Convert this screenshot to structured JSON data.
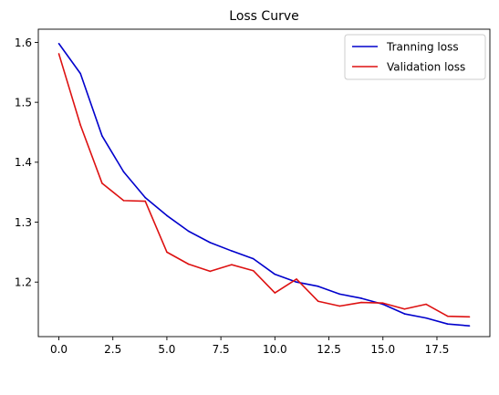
{
  "chart_data": {
    "type": "line",
    "title": "Loss Curve",
    "xlabel": "",
    "ylabel": "",
    "x": [
      0,
      1,
      2,
      3,
      4,
      5,
      6,
      7,
      8,
      9,
      10,
      11,
      12,
      13,
      14,
      15,
      16,
      17,
      18,
      19
    ],
    "xlim": [
      -0.95,
      19.95
    ],
    "ylim": [
      1.109,
      1.622
    ],
    "xticks": [
      0.0,
      2.5,
      5.0,
      7.5,
      10.0,
      12.5,
      15.0,
      17.5
    ],
    "xtick_labels": [
      "0.0",
      "2.5",
      "5.0",
      "7.5",
      "10.0",
      "12.5",
      "15.0",
      "17.5"
    ],
    "yticks": [
      1.2,
      1.3,
      1.4,
      1.5,
      1.6
    ],
    "ytick_labels": [
      "1.2",
      "1.3",
      "1.4",
      "1.5",
      "1.6"
    ],
    "grid": false,
    "legend_position": "top-right",
    "series": [
      {
        "name": "Tranning loss",
        "color": "#0000cc",
        "values": [
          1.598,
          1.548,
          1.444,
          1.384,
          1.341,
          1.311,
          1.285,
          1.266,
          1.252,
          1.239,
          1.213,
          1.2,
          1.193,
          1.18,
          1.173,
          1.163,
          1.147,
          1.14,
          1.13,
          1.127
        ]
      },
      {
        "name": "Validation loss",
        "color": "#dd1111",
        "values": [
          1.581,
          1.462,
          1.365,
          1.336,
          1.335,
          1.25,
          1.23,
          1.218,
          1.229,
          1.219,
          1.182,
          1.205,
          1.168,
          1.16,
          1.166,
          1.165,
          1.155,
          1.163,
          1.143,
          1.142
        ]
      }
    ]
  }
}
